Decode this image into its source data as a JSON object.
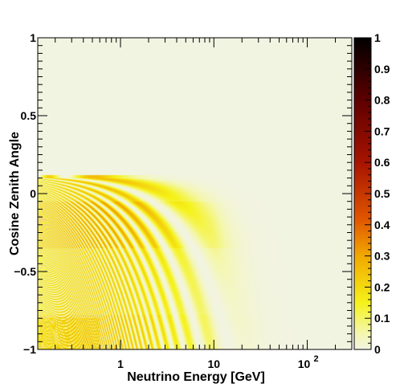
{
  "chart_data": {
    "type": "heatmap",
    "title": "",
    "xlabel": "Neutrino Energy [GeV]",
    "ylabel": "Cosine Zenith Angle",
    "x_scale": "log",
    "xlim": [
      0.13,
      300
    ],
    "ylim": [
      -1,
      1
    ],
    "zlim": [
      0,
      1
    ],
    "colormap": "hot (white to yellow to orange to red to black)",
    "colormap_stops": [
      "#f2f4e2",
      "#f4f7b0",
      "#f5f21a",
      "#f2a900",
      "#e05500",
      "#a81400",
      "#5e0000",
      "#000000"
    ],
    "background_color": "#f1f3e3",
    "x_tick_labels": [
      {
        "value": 1,
        "base": "1",
        "exp": ""
      },
      {
        "value": 10,
        "base": "10",
        "exp": ""
      },
      {
        "value": 100,
        "base": "10",
        "exp": "2"
      }
    ],
    "y_tick_labels": [
      "1",
      "0.5",
      "0",
      "−0.5",
      "−1"
    ],
    "y_tick_values": [
      1,
      0.5,
      0,
      -0.5,
      -1
    ],
    "z_tick_labels": [
      "1",
      "0.9",
      "0.8",
      "0.7",
      "0.6",
      "0.5",
      "0.4",
      "0.3",
      "0.2",
      "0.1",
      "0"
    ],
    "z_tick_values": [
      1,
      0.9,
      0.8,
      0.7,
      0.6,
      0.5,
      0.4,
      0.3,
      0.2,
      0.1,
      0
    ],
    "pattern": "oscillation probability bands for cos zenith below ~0.1, strongest (~0.3) at E below 1 GeV and cos zenith between -0.05 and -0.35 and near -0.85; fading above ~10 GeV"
  }
}
